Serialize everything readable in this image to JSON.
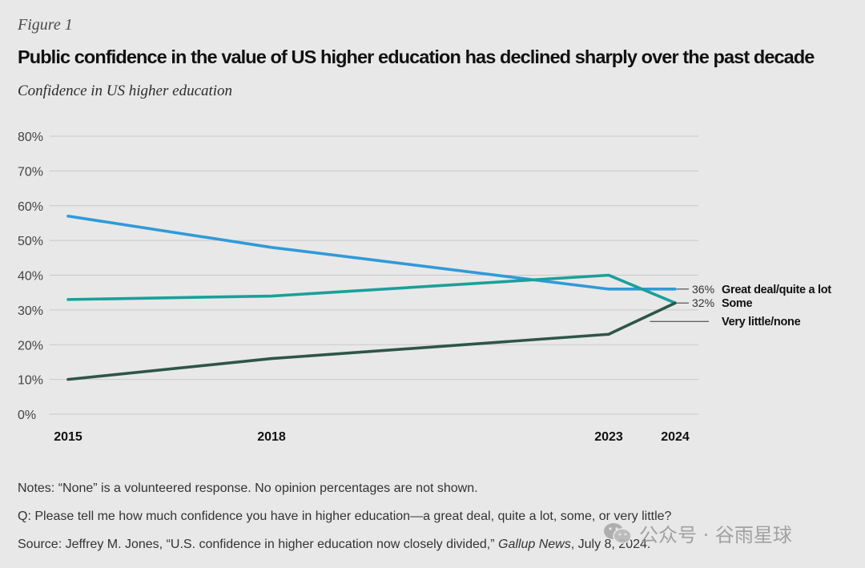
{
  "header": {
    "figure_label": "Figure 1",
    "title": "Public confidence in the value of US higher education has declined sharply over the past decade",
    "subtitle": "Confidence in US higher education"
  },
  "chart_data": {
    "type": "line",
    "title": "Public confidence in the value of US higher education has declined sharply over the past decade",
    "subtitle": "Confidence in US higher education",
    "x": [
      2015,
      2018,
      2023,
      2024
    ],
    "x_tick_labels": [
      "2015",
      "2018",
      "2023",
      "2024"
    ],
    "ylim": [
      0,
      80
    ],
    "y_ticks": [
      0,
      10,
      20,
      30,
      40,
      50,
      60,
      70,
      80
    ],
    "y_tick_labels": [
      "0%",
      "10%",
      "20%",
      "30%",
      "40%",
      "50%",
      "60%",
      "70%",
      "80%"
    ],
    "grid": true,
    "legend": "direct labels at right",
    "series": [
      {
        "name": "Great deal/quite a lot",
        "values": [
          57,
          48,
          36,
          36
        ],
        "color": "#2f9ad8",
        "end_label": "36%"
      },
      {
        "name": "Some",
        "values": [
          33,
          34,
          40,
          32
        ],
        "color": "#1aa09a",
        "end_label": "32%"
      },
      {
        "name": "Very little/none",
        "values": [
          10,
          16,
          23,
          32
        ],
        "color": "#2f5548",
        "end_label": ""
      }
    ]
  },
  "notes": {
    "line1": "Notes: “None” is a volunteered response. No opinion percentages are not shown.",
    "line2": "Q: Please tell me how much confidence you have in higher education—a great deal, quite a lot, some, or very little?",
    "line3_prefix": "Source: Jeffrey M. Jones, “U.S. confidence in higher education now closely divided,” ",
    "line3_italic": "Gallup News",
    "line3_suffix": ", July 8, 2024."
  },
  "watermark": {
    "text": "公众号 · 谷雨星球",
    "icon": "wechat-icon"
  }
}
